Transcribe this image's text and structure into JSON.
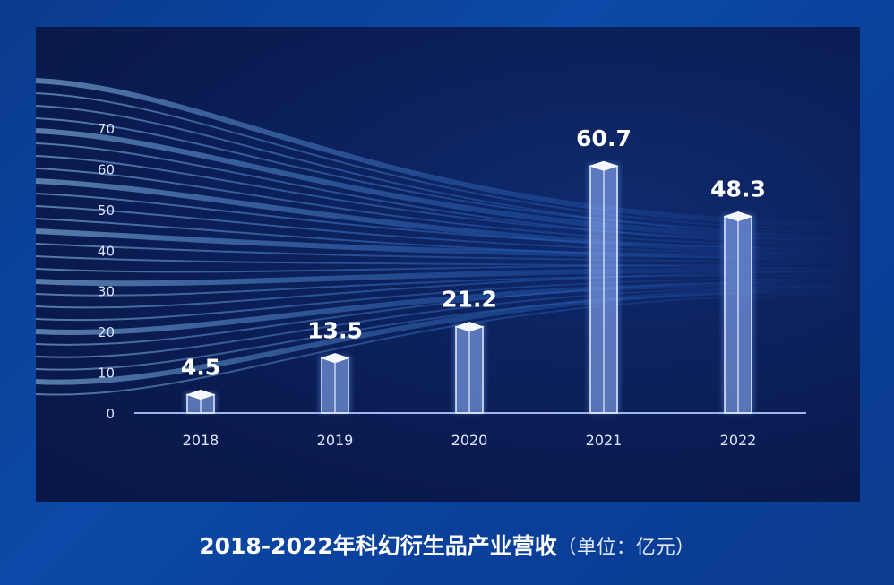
{
  "chart_data": {
    "type": "bar",
    "categories": [
      "2018",
      "2019",
      "2020",
      "2021",
      "2022"
    ],
    "values": [
      4.5,
      13.5,
      21.2,
      60.7,
      48.3
    ],
    "data_labels": [
      "4.5",
      "13.5",
      "21.2",
      "60.7",
      "48.3"
    ],
    "ylim": [
      0,
      70
    ],
    "yticks": [
      0,
      10,
      20,
      30,
      40,
      50,
      60,
      70
    ],
    "grid": false,
    "title": "2018-2022年科幻衍生品产业营收",
    "unit_note": "（单位：亿元）",
    "colors": {
      "bar_fill": "#8fa8e8",
      "bar_edge": "#e6eeff",
      "background": "#0a1c52",
      "light_streaks": "#5fb0ff"
    }
  }
}
